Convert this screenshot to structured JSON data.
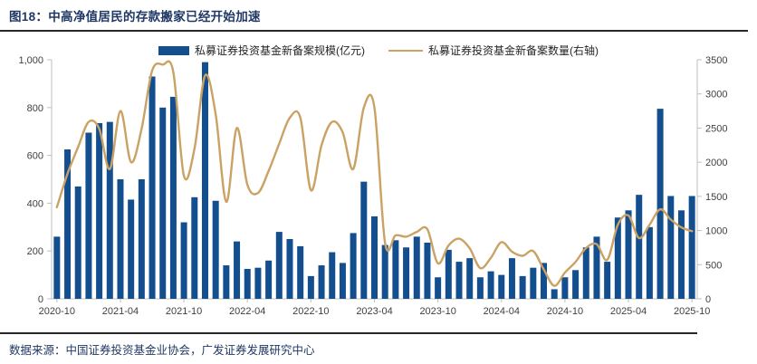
{
  "header": {
    "title": "图18：中高净值居民的存款搬家已经开始加速"
  },
  "legend": [
    {
      "label": "私募证券投资基金新备案规模(亿元)",
      "type": "bar",
      "color": "#134E8F"
    },
    {
      "label": "私募证券投资基金新备案数量(右轴)",
      "type": "line",
      "color": "#C9A264"
    }
  ],
  "footer": {
    "source": "数据来源：中国证券投资基金业协会，广发证券发展研究中心"
  },
  "colors": {
    "bar": "#134E8F",
    "line": "#C9A264",
    "title": "#1F3864",
    "axis": "#BFBFBF",
    "tick_text": "#404040",
    "divider": "#262626"
  },
  "chart_data": {
    "type": "bar",
    "subtype": "bar+line combo, dual axis",
    "x": [
      "2020-10",
      "2020-11",
      "2020-12",
      "2021-01",
      "2021-02",
      "2021-03",
      "2021-04",
      "2021-05",
      "2021-06",
      "2021-07",
      "2021-08",
      "2021-09",
      "2021-10",
      "2021-11",
      "2021-12",
      "2022-01",
      "2022-02",
      "2022-03",
      "2022-04",
      "2022-05",
      "2022-06",
      "2022-07",
      "2022-08",
      "2022-09",
      "2022-10",
      "2022-11",
      "2022-12",
      "2023-01",
      "2023-02",
      "2023-03",
      "2023-04",
      "2023-05",
      "2023-06",
      "2023-07",
      "2023-08",
      "2023-09",
      "2023-10",
      "2023-11",
      "2023-12",
      "2024-01",
      "2024-02",
      "2024-03",
      "2024-04",
      "2024-05",
      "2024-06",
      "2024-07",
      "2024-08",
      "2024-09",
      "2024-10",
      "2024-11",
      "2024-12",
      "2025-01",
      "2025-02",
      "2025-03",
      "2025-04",
      "2025-05",
      "2025-06",
      "2025-07",
      "2025-08",
      "2025-09",
      "2025-10"
    ],
    "x_tick_labels": [
      "2020-10",
      "2021-04",
      "2021-10",
      "2022-04",
      "2022-10",
      "2023-04",
      "2023-10",
      "2024-04",
      "2024-10",
      "2025-04",
      "2025-10"
    ],
    "x_tick_every": 6,
    "series": [
      {
        "name": "私募证券投资基金新备案规模(亿元)",
        "type": "bar",
        "axis": "left",
        "color": "#134E8F",
        "values": [
          260,
          625,
          470,
          695,
          735,
          740,
          500,
          415,
          500,
          930,
          800,
          845,
          320,
          425,
          990,
          410,
          140,
          240,
          125,
          130,
          160,
          280,
          250,
          220,
          95,
          140,
          195,
          150,
          275,
          490,
          345,
          225,
          245,
          215,
          260,
          235,
          90,
          205,
          155,
          170,
          90,
          115,
          100,
          170,
          95,
          130,
          150,
          40,
          90,
          120,
          215,
          260,
          155,
          340,
          370,
          435,
          300,
          795,
          430,
          370,
          430
        ]
      },
      {
        "name": "私募证券投资基金新备案数量(右轴)",
        "type": "line",
        "axis": "right",
        "color": "#C9A264",
        "values": [
          1340,
          1830,
          2220,
          2590,
          2490,
          1900,
          2750,
          2000,
          2490,
          3340,
          3430,
          3320,
          1800,
          2200,
          3270,
          2700,
          1420,
          2500,
          1670,
          1550,
          1870,
          2270,
          2650,
          2650,
          1590,
          2250,
          2590,
          2440,
          1900,
          2800,
          2800,
          820,
          930,
          910,
          980,
          1020,
          520,
          780,
          880,
          740,
          450,
          600,
          830,
          690,
          630,
          700,
          430,
          190,
          385,
          540,
          745,
          800,
          570,
          1085,
          1220,
          890,
          1085,
          1310,
          1160,
          1045,
          990
        ]
      }
    ],
    "left_axis": {
      "min": 0,
      "max": 1000,
      "step": 200,
      "tick_labels": [
        "0",
        "200",
        "400",
        "600",
        "800",
        "1,000"
      ]
    },
    "right_axis": {
      "min": 0,
      "max": 3500,
      "step": 500,
      "tick_labels": [
        "0",
        "500",
        "1000",
        "1500",
        "2000",
        "2500",
        "3000",
        "3500"
      ]
    },
    "grid": false,
    "legend_position": "top-center"
  }
}
